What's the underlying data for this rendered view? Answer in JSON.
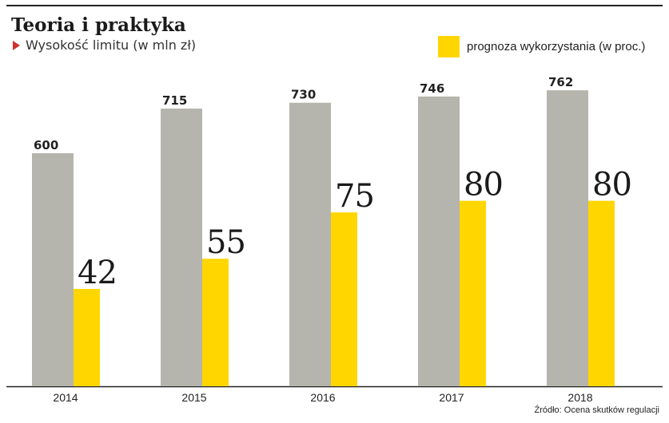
{
  "header": {
    "title": "Teoria i praktyka",
    "subtitle": "Wysokość limitu (w mln zł)",
    "legend_label": "prognoza wykorzystania (w proc.)",
    "source": "Źródło: Ocena skutków regulacji"
  },
  "colors": {
    "limit": "#b5b5ad",
    "forecast": "#ffd600",
    "subtitle_marker": "#d0312d"
  },
  "chart_data": {
    "type": "bar",
    "categories": [
      "2014",
      "2015",
      "2016",
      "2017",
      "2018"
    ],
    "series": [
      {
        "name": "Wysokość limitu (w mln zł)",
        "values": [
          600,
          715,
          730,
          746,
          762
        ]
      },
      {
        "name": "prognoza wykorzystania (w proc.)",
        "values": [
          42,
          55,
          75,
          80,
          80
        ]
      }
    ],
    "title": "Teoria i praktyka",
    "legend_position": "top-right",
    "grid": false
  }
}
